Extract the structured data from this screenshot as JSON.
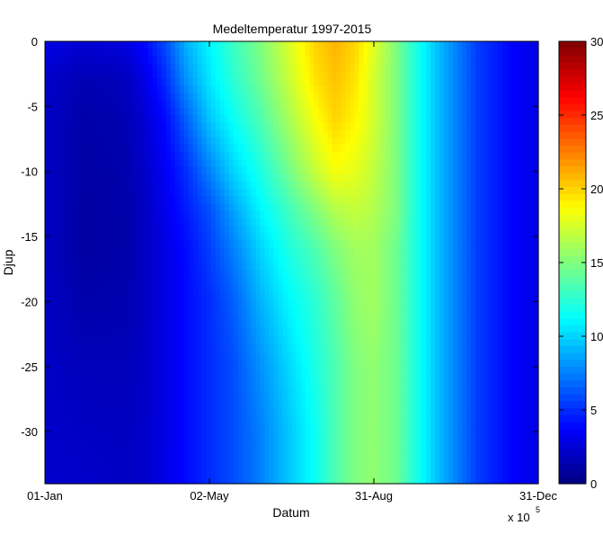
{
  "chart_data": {
    "type": "heatmap",
    "title": "Medeltemperatur 1997-2015",
    "xlabel": "Datum",
    "ylabel": "Djup",
    "x_multiplier_label": "x 10",
    "x_multiplier_exponent": "5",
    "x_tick_labels": [
      "01-Jan",
      "02-May",
      "31-Aug",
      "31-Dec"
    ],
    "y_tick_labels": [
      "0",
      "-5",
      "-10",
      "-15",
      "-20",
      "-25",
      "-30"
    ],
    "y_tick_values": [
      0,
      -5,
      -10,
      -15,
      -20,
      -25,
      -30
    ],
    "ylim": [
      -34,
      0
    ],
    "colorbar": {
      "range": [
        0,
        30
      ],
      "tick_values": [
        0,
        5,
        10,
        15,
        20,
        25,
        30
      ],
      "tick_labels": [
        "0",
        "5",
        "10",
        "15",
        "20",
        "25",
        "30"
      ],
      "colormap": "jet"
    },
    "grid": false,
    "day_of_year": [
      1,
      30,
      60,
      75,
      90,
      105,
      122,
      140,
      160,
      180,
      200,
      215,
      230,
      243,
      260,
      275,
      290,
      305,
      320,
      335,
      350,
      365
    ],
    "depth": [
      0,
      -3,
      -6,
      -10,
      -13,
      -16,
      -20,
      -25,
      -30,
      -34
    ],
    "values": [
      [
        3.0,
        2.2,
        2.1,
        2.0,
        2.1,
        2.0,
        2.0,
        2.1,
        2.2,
        2.3
      ],
      [
        2.5,
        1.5,
        1.2,
        1.1,
        1.0,
        1.0,
        1.3,
        1.7,
        2.0,
        2.2
      ],
      [
        2.8,
        1.8,
        1.5,
        1.3,
        1.2,
        1.2,
        1.4,
        1.7,
        1.9,
        2.0
      ],
      [
        4.0,
        3.0,
        2.5,
        2.2,
        2.0,
        2.0,
        2.0,
        2.1,
        2.2,
        2.3
      ],
      [
        6.0,
        5.0,
        4.0,
        3.5,
        3.2,
        3.0,
        3.0,
        3.0,
        3.0,
        3.0
      ],
      [
        9.0,
        8.0,
        6.5,
        5.0,
        4.5,
        4.0,
        4.0,
        4.0,
        4.0,
        4.0
      ],
      [
        11.0,
        10.5,
        9.5,
        7.5,
        6.0,
        5.5,
        5.0,
        5.0,
        5.0,
        5.0
      ],
      [
        13.0,
        12.5,
        11.5,
        10.0,
        8.5,
        7.5,
        6.5,
        6.0,
        6.0,
        6.0
      ],
      [
        15.0,
        14.5,
        13.5,
        12.0,
        11.0,
        10.0,
        9.0,
        8.0,
        7.5,
        7.5
      ],
      [
        17.5,
        17.0,
        16.0,
        14.5,
        13.0,
        12.0,
        11.0,
        10.0,
        9.5,
        9.5
      ],
      [
        20.0,
        19.5,
        18.5,
        17.0,
        15.0,
        13.5,
        12.5,
        12.0,
        11.5,
        11.5
      ],
      [
        21.0,
        20.5,
        20.0,
        18.5,
        16.5,
        15.0,
        14.0,
        13.5,
        13.5,
        13.5
      ],
      [
        20.0,
        19.5,
        19.0,
        18.0,
        17.0,
        16.0,
        15.5,
        15.0,
        15.0,
        15.0
      ],
      [
        18.0,
        17.5,
        17.5,
        17.0,
        16.5,
        16.0,
        16.0,
        15.5,
        15.5,
        15.5
      ],
      [
        15.0,
        15.0,
        15.0,
        15.0,
        15.0,
        14.5,
        14.5,
        14.5,
        14.5,
        14.5
      ],
      [
        12.0,
        12.0,
        12.0,
        12.0,
        12.0,
        12.0,
        12.0,
        12.0,
        12.0,
        12.0
      ],
      [
        9.5,
        9.5,
        9.5,
        9.5,
        9.5,
        9.5,
        9.5,
        9.5,
        9.5,
        9.5
      ],
      [
        7.5,
        7.5,
        7.5,
        7.5,
        7.5,
        7.5,
        7.5,
        7.5,
        7.5,
        7.5
      ],
      [
        5.5,
        5.5,
        5.5,
        5.5,
        5.5,
        5.5,
        5.5,
        5.5,
        5.5,
        5.5
      ],
      [
        4.5,
        4.5,
        4.5,
        4.5,
        4.5,
        4.5,
        4.5,
        4.5,
        4.5,
        4.5
      ],
      [
        3.5,
        3.5,
        3.5,
        3.5,
        3.5,
        3.5,
        3.5,
        3.5,
        3.5,
        3.5
      ],
      [
        3.0,
        3.0,
        3.0,
        3.0,
        3.0,
        3.0,
        3.0,
        3.0,
        3.0,
        3.0
      ]
    ]
  }
}
